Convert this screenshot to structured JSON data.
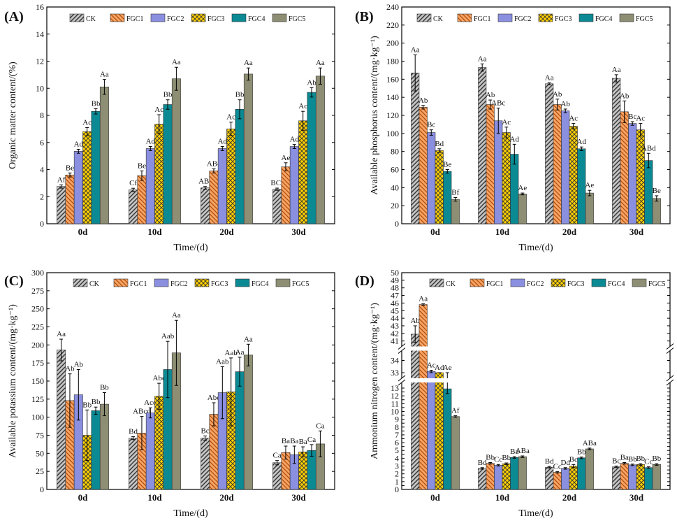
{
  "figure": {
    "series_names": [
      "CK",
      "FGC1",
      "FGC2",
      "FGC3",
      "FGC4",
      "FGC5"
    ],
    "series_colors": [
      "#c4c4c4",
      "#f4a468",
      "#8b8fe0",
      "#ffd100",
      "#0b8a94",
      "#8e8e74"
    ],
    "categories": [
      "0d",
      "10d",
      "20d",
      "30d"
    ]
  },
  "chart_data": [
    {
      "type": "bar",
      "panel_label": "(A)",
      "title": "",
      "xlabel": "Time/(d)",
      "ylabel": "Organic matter content/(%)",
      "categories": [
        "0d",
        "10d",
        "20d",
        "30d"
      ],
      "ylim": [
        0,
        16
      ],
      "yticks": [
        0,
        2,
        4,
        6,
        8,
        10,
        12,
        14,
        16
      ],
      "series": [
        {
          "name": "CK",
          "values": [
            2.75,
            2.5,
            2.65,
            2.55
          ],
          "errors": [
            0.12,
            0.12,
            0.1,
            0.08
          ],
          "labels": [
            "Af",
            "Cf",
            "ABf",
            "BCf"
          ]
        },
        {
          "name": "FGC1",
          "values": [
            3.6,
            3.55,
            3.9,
            4.2
          ],
          "errors": [
            0.15,
            0.35,
            0.15,
            0.3
          ],
          "labels": [
            "Be",
            "Be",
            "ABe",
            "Ae"
          ]
        },
        {
          "name": "FGC2",
          "values": [
            5.35,
            5.55,
            5.55,
            5.7
          ],
          "errors": [
            0.15,
            0.15,
            0.15,
            0.15
          ],
          "labels": [
            "Ad",
            "Ad",
            "Ad",
            "Ad"
          ]
        },
        {
          "name": "FGC3",
          "values": [
            6.8,
            7.35,
            7.0,
            7.6
          ],
          "errors": [
            0.3,
            0.7,
            0.5,
            0.7
          ],
          "labels": [
            "Ac",
            "Ac",
            "Ac",
            "Ac"
          ]
        },
        {
          "name": "FGC4",
          "values": [
            8.3,
            8.8,
            8.45,
            9.7
          ],
          "errors": [
            0.2,
            0.35,
            0.7,
            0.35
          ],
          "labels": [
            "Bb",
            "Bb",
            "Bb",
            "Ab"
          ]
        },
        {
          "name": "FGC5",
          "values": [
            10.1,
            10.7,
            11.05,
            10.9
          ],
          "errors": [
            0.55,
            0.85,
            0.45,
            0.6
          ],
          "labels": [
            "Aa",
            "Aa",
            "Aa",
            "Aa"
          ]
        }
      ]
    },
    {
      "type": "bar",
      "panel_label": "(B)",
      "title": "",
      "xlabel": "Time/(d)",
      "ylabel": "Available phosphorus content/(mg·kg⁻¹)",
      "categories": [
        "0d",
        "10d",
        "20d",
        "30d"
      ],
      "ylim": [
        0,
        240
      ],
      "yticks": [
        0,
        20,
        40,
        60,
        80,
        100,
        120,
        140,
        160,
        180,
        200,
        220,
        240
      ],
      "series": [
        {
          "name": "CK",
          "values": [
            167,
            173,
            155,
            161
          ],
          "errors": [
            20,
            4,
            1,
            4
          ],
          "labels": [
            "Aa",
            "Aa",
            "Aa",
            "Aa"
          ]
        },
        {
          "name": "FGC1",
          "values": [
            129,
            132,
            132,
            124
          ],
          "errors": [
            2,
            5,
            6,
            12
          ],
          "labels": [
            "Ab",
            "Ab",
            "Ab",
            "Ab"
          ]
        },
        {
          "name": "FGC2",
          "values": [
            101,
            114,
            125,
            111
          ],
          "errors": [
            3,
            14,
            2,
            2
          ],
          "labels": [
            "Bc",
            "ABc",
            "Ab",
            "Bc"
          ]
        },
        {
          "name": "FGC3",
          "values": [
            81,
            101,
            108,
            104
          ],
          "errors": [
            2,
            6,
            3,
            7
          ],
          "labels": [
            "Bd",
            "Ac",
            "Ac",
            "Ac"
          ]
        },
        {
          "name": "FGC4",
          "values": [
            58,
            77,
            83,
            70
          ],
          "errors": [
            2,
            11,
            2,
            8
          ],
          "labels": [
            "Be",
            "Ad",
            "Ad",
            "ABd"
          ]
        },
        {
          "name": "FGC5",
          "values": [
            27,
            33,
            34,
            28
          ],
          "errors": [
            2,
            1,
            3,
            3
          ],
          "labels": [
            "Bf",
            "Ae",
            "Ae",
            "Be"
          ]
        }
      ]
    },
    {
      "type": "bar",
      "panel_label": "(C)",
      "title": "",
      "xlabel": "Time/(d)",
      "ylabel": "Available potassium content/(mg·kg⁻¹)",
      "categories": [
        "0d",
        "10d",
        "20d",
        "30d"
      ],
      "ylim": [
        0,
        300
      ],
      "yticks": [
        0,
        25,
        50,
        75,
        100,
        125,
        150,
        175,
        200,
        225,
        250,
        275,
        300
      ],
      "series": [
        {
          "name": "CK",
          "values": [
            193,
            71,
            71,
            37
          ],
          "errors": [
            15,
            2,
            3,
            3
          ],
          "labels": [
            "Aa",
            "Bd",
            "Bc",
            "Ca"
          ]
        },
        {
          "name": "FGC1",
          "values": [
            123,
            78,
            104,
            51
          ],
          "errors": [
            37,
            23,
            16,
            9
          ],
          "labels": [
            "Ab",
            "ABcd",
            "Abc",
            "Ba"
          ]
        },
        {
          "name": "FGC2",
          "values": [
            131,
            106,
            134,
            48
          ],
          "errors": [
            35,
            7,
            36,
            12
          ],
          "labels": [
            "Ab",
            "Acd",
            "Aab",
            "Ba"
          ]
        },
        {
          "name": "FGC3",
          "values": [
            75,
            129,
            135,
            52
          ],
          "errors": [
            35,
            18,
            47,
            7
          ],
          "labels": [
            "Bb",
            "Abc",
            "Aab",
            "Ba"
          ]
        },
        {
          "name": "FGC4",
          "values": [
            109,
            166,
            163,
            54
          ],
          "errors": [
            5,
            39,
            20,
            8
          ],
          "labels": [
            "Bb",
            "Aab",
            "Aa",
            "Ca"
          ]
        },
        {
          "name": "FGC5",
          "values": [
            118,
            189,
            186,
            63
          ],
          "errors": [
            16,
            45,
            15,
            18
          ],
          "labels": [
            "Bb",
            "Aa",
            "Aa",
            "Ca"
          ]
        }
      ]
    },
    {
      "type": "bar",
      "panel_label": "(D)",
      "title": "",
      "xlabel": "Time/(d)",
      "ylabel": "Ammonium nitrogen content/(mg·kg⁻¹)",
      "categories": [
        "0d",
        "10d",
        "20d",
        "30d"
      ],
      "ylim": [
        0,
        50
      ],
      "axis_break_note": "broken y-axis: 0–13, 33–34, 41–50",
      "yticks_low": [
        0,
        0.5,
        1,
        1.5,
        2,
        2.5,
        3,
        3.5,
        4,
        4.5,
        5,
        5.5,
        6,
        6.5,
        7,
        7.5,
        8,
        8.5,
        9,
        9.5,
        10,
        10.5,
        11,
        11.5,
        12,
        12.5,
        13
      ],
      "yticks_mid": [
        33,
        34
      ],
      "yticks_high": [
        41,
        42,
        43,
        44,
        45,
        46,
        47,
        48,
        49,
        50
      ],
      "series": [
        {
          "name": "CK",
          "values": [
            41.9,
            2.7,
            2.85,
            2.9
          ],
          "errors": [
            1.1,
            0.1,
            0.1,
            0.1
          ],
          "labels": [
            "Ab",
            "Bd",
            "Bd",
            "Bc"
          ]
        },
        {
          "name": "FGC1",
          "values": [
            45.8,
            3.35,
            2.2,
            3.35
          ],
          "errors": [
            0.1,
            0.1,
            0.1,
            0.1
          ],
          "labels": [
            "Aa",
            "Bb",
            "Cc",
            "Ba"
          ]
        },
        {
          "name": "FGC2",
          "values": [
            33.1,
            3.1,
            2.7,
            3.15
          ],
          "errors": [
            0.1,
            0.1,
            0.1,
            0.1
          ],
          "labels": [
            "Ac",
            "Cc",
            "Dd",
            "Bb"
          ]
        },
        {
          "name": "FGC3",
          "values": [
            20.5,
            3.3,
            3.0,
            3.2
          ],
          "errors": [
            0.5,
            0.1,
            0.2,
            0.1
          ],
          "labels": [
            "Ad",
            "Bb",
            "Bc",
            "Bb"
          ]
        },
        {
          "name": "FGC4",
          "values": [
            12.9,
            4.1,
            4.05,
            2.8
          ],
          "errors": [
            0.6,
            0.1,
            0.1,
            0.1
          ],
          "labels": [
            "Ae",
            "Ba",
            "Bb",
            "Cc"
          ]
        },
        {
          "name": "FGC5",
          "values": [
            9.35,
            4.2,
            5.2,
            3.2
          ],
          "errors": [
            0.1,
            0.1,
            0.1,
            0.1
          ],
          "labels": [
            "Af",
            "ABa",
            "ABa",
            "Bb"
          ]
        }
      ]
    }
  ]
}
